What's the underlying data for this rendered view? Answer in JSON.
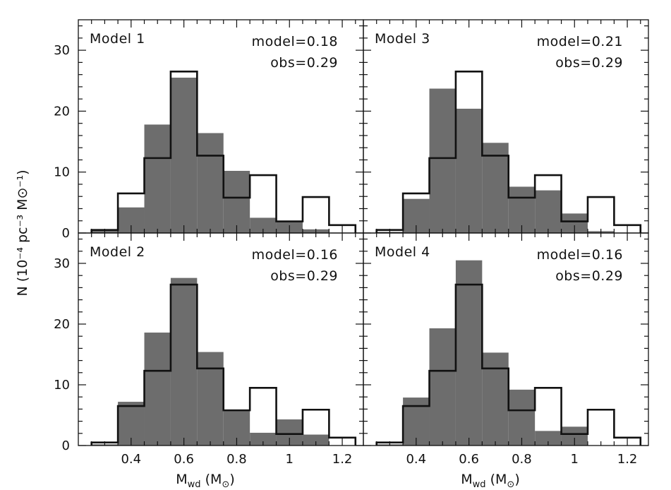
{
  "chart_data": {
    "type": "bar",
    "layout": "2x2 panels, shared axes",
    "xlabel": "M",
    "xlabel_sub": "wd",
    "xlabel_unit_open": "(M",
    "xlabel_unit_sub": "⊙",
    "xlabel_unit_close": ")",
    "ylabel": "N (10⁻⁴ pc⁻³ M⊙⁻¹)",
    "xlim": [
      0.2,
      1.28
    ],
    "ylim": [
      0,
      35
    ],
    "x_ticks": [
      0.4,
      0.6,
      0.8,
      1,
      1.2
    ],
    "x_tick_labels": [
      "0.4",
      "0.6",
      "0.8",
      "1",
      "1.2"
    ],
    "y_ticks": [
      0,
      10,
      20,
      30
    ],
    "y_tick_labels": [
      "0",
      "10",
      "20",
      "30"
    ],
    "bin_edges": [
      0.25,
      0.35,
      0.45,
      0.55,
      0.65,
      0.75,
      0.85,
      0.95,
      1.05,
      1.15,
      1.25
    ],
    "observed_values": [
      0.5,
      6.5,
      12.3,
      26.5,
      12.7,
      5.8,
      9.5,
      1.9,
      5.9,
      1.3
    ],
    "fill_color": "#6d6d6d",
    "step_color": "#111111",
    "panels": [
      {
        "name": "Model 1",
        "model_label": "model=0.18",
        "obs_label": "obs=0.29",
        "model_values": [
          0.5,
          4.2,
          17.8,
          25.5,
          16.4,
          10.2,
          2.5,
          1.8,
          0.6,
          0.0
        ]
      },
      {
        "name": "Model 3",
        "model_label": "model=0.21",
        "obs_label": "obs=0.29",
        "model_values": [
          0.2,
          5.6,
          23.7,
          20.4,
          14.8,
          7.6,
          7.0,
          3.2,
          0.3,
          0.0
        ]
      },
      {
        "name": "Model 2",
        "model_label": "model=0.16",
        "obs_label": "obs=0.29",
        "model_values": [
          0.2,
          7.2,
          18.6,
          27.6,
          15.4,
          5.9,
          2.1,
          4.3,
          1.8,
          0.0
        ]
      },
      {
        "name": "Model 4",
        "model_label": "model=0.16",
        "obs_label": "obs=0.29",
        "model_values": [
          0.2,
          7.9,
          19.3,
          30.5,
          15.3,
          9.2,
          2.4,
          3.1,
          0.0,
          0.0
        ]
      }
    ]
  }
}
